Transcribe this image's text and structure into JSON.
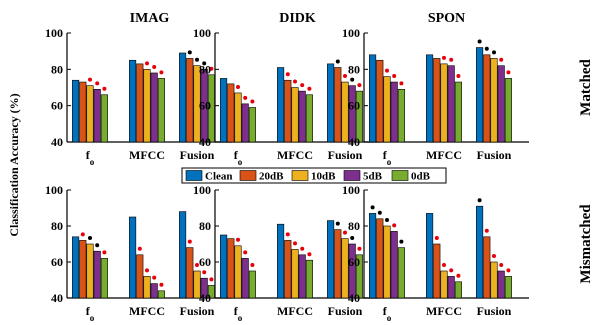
{
  "chart_data": {
    "type": "bar",
    "ylabel": "Classification Accuracy (%)",
    "ylim": [
      40,
      100
    ],
    "yticks": [
      40,
      60,
      80,
      100
    ],
    "categories": [
      "f",
      "MFCC",
      "Fusion"
    ],
    "category_subscript": {
      "f": "o"
    },
    "legend": [
      "Clean",
      "20dB",
      "10dB",
      "5dB",
      "0dB"
    ],
    "legend_placement": "center, between rows",
    "series_colors": [
      "#0072BD",
      "#D95319",
      "#EDB120",
      "#7E2F8E",
      "#77AC30"
    ],
    "grid": false,
    "columns": [
      "IMAG",
      "DIDK",
      "SPON"
    ],
    "rows": [
      "Matched",
      "Mismatched"
    ],
    "panels": [
      {
        "row": "Matched",
        "column": "IMAG",
        "values": [
          [
            74,
            73,
            71,
            69,
            66
          ],
          [
            85,
            83,
            80,
            78,
            75
          ],
          [
            89,
            86,
            82,
            80,
            77
          ]
        ],
        "markers": [
          [
            "",
            "",
            "red",
            "red",
            "red"
          ],
          [
            "",
            "",
            "red",
            "red",
            "red"
          ],
          [
            "",
            "black",
            "black",
            "black",
            "red"
          ]
        ]
      },
      {
        "row": "Matched",
        "column": "DIDK",
        "values": [
          [
            75,
            72,
            67,
            61,
            59
          ],
          [
            81,
            74,
            70,
            68,
            66
          ],
          [
            83,
            81,
            73,
            71,
            68
          ]
        ],
        "markers": [
          [
            "",
            "",
            "red",
            "red",
            "red"
          ],
          [
            "",
            "red",
            "red",
            "red",
            "red"
          ],
          [
            "",
            "black",
            "red",
            "black",
            "red"
          ]
        ]
      },
      {
        "row": "Matched",
        "column": "SPON",
        "values": [
          [
            88,
            85,
            76,
            73,
            69
          ],
          [
            88,
            86,
            83,
            82,
            73
          ],
          [
            92,
            88,
            86,
            82,
            75
          ]
        ],
        "markers": [
          [
            "",
            "",
            "red",
            "red",
            "red"
          ],
          [
            "",
            "",
            "red",
            "red",
            "red"
          ],
          [
            "black",
            "black",
            "black",
            "red",
            "red"
          ]
        ]
      },
      {
        "row": "Mismatched",
        "column": "IMAG",
        "values": [
          [
            74,
            72,
            70,
            66,
            62
          ],
          [
            85,
            64,
            52,
            48,
            44
          ],
          [
            88,
            68,
            55,
            51,
            47
          ]
        ],
        "markers": [
          [
            "",
            "red",
            "black",
            "black",
            "red"
          ],
          [
            "",
            "red",
            "red",
            "red",
            "red"
          ],
          [
            "",
            "red",
            "red",
            "red",
            "red"
          ]
        ]
      },
      {
        "row": "Mismatched",
        "column": "DIDK",
        "values": [
          [
            75,
            73,
            69,
            62,
            55
          ],
          [
            81,
            72,
            67,
            64,
            61
          ],
          [
            83,
            78,
            73,
            70,
            64
          ]
        ],
        "markers": [
          [
            "",
            "",
            "red",
            "red",
            "red"
          ],
          [
            "",
            "red",
            "red",
            "red",
            "red"
          ],
          [
            "",
            "black",
            "red",
            "black",
            "red"
          ]
        ]
      },
      {
        "row": "Mismatched",
        "column": "SPON",
        "values": [
          [
            87,
            84,
            80,
            77,
            68
          ],
          [
            87,
            70,
            55,
            52,
            49
          ],
          [
            91,
            74,
            60,
            55,
            52
          ]
        ],
        "markers": [
          [
            "black",
            "black",
            "black",
            "red",
            "black"
          ],
          [
            "",
            "red",
            "red",
            "red",
            "red"
          ],
          [
            "black",
            "red",
            "red",
            "red",
            "red"
          ]
        ]
      }
    ]
  }
}
